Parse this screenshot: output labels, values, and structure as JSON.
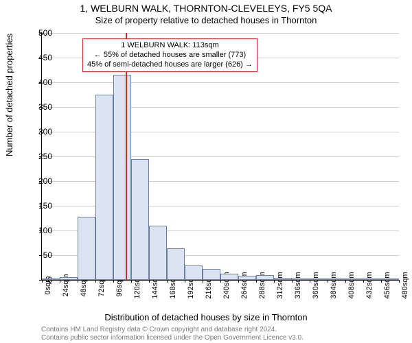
{
  "chart": {
    "type": "histogram",
    "title_line1": "1, WELBURN WALK, THORNTON-CLEVELEYS, FY5 5QA",
    "title_line2": "Size of property relative to detached houses in Thornton",
    "x_label": "Distribution of detached houses by size in Thornton",
    "y_label": "Number of detached properties",
    "background_color": "#ffffff",
    "grid_color": "#cccccc",
    "bar_fill": "#dbe4f0",
    "bar_border": "#6b7fa3",
    "refline_color": "#cc2b2b",
    "ylim": [
      0,
      500
    ],
    "ytick_step": 50,
    "x_bin_width_sqm": 24,
    "x_ticks": [
      "0sqm",
      "24sqm",
      "48sqm",
      "72sqm",
      "96sqm",
      "120sqm",
      "144sqm",
      "168sqm",
      "192sqm",
      "216sqm",
      "240sqm",
      "264sqm",
      "288sqm",
      "312sqm",
      "336sqm",
      "360sqm",
      "384sqm",
      "408sqm",
      "432sqm",
      "456sqm",
      "480sqm"
    ],
    "values": [
      2,
      6,
      128,
      375,
      415,
      245,
      110,
      64,
      29,
      22,
      12,
      8,
      10,
      4,
      2,
      2,
      1,
      1,
      1,
      0
    ],
    "reference_value_sqm": 113,
    "callout": {
      "line1": "1 WELBURN WALK: 113sqm",
      "line2": "← 55% of detached houses are smaller (773)",
      "line3": "45% of semi-detached houses are larger (626) →"
    },
    "footer_line1": "Contains HM Land Registry data © Crown copyright and database right 2024.",
    "footer_line2": "Contains public sector information licensed under the Open Government Licence v3.0."
  }
}
